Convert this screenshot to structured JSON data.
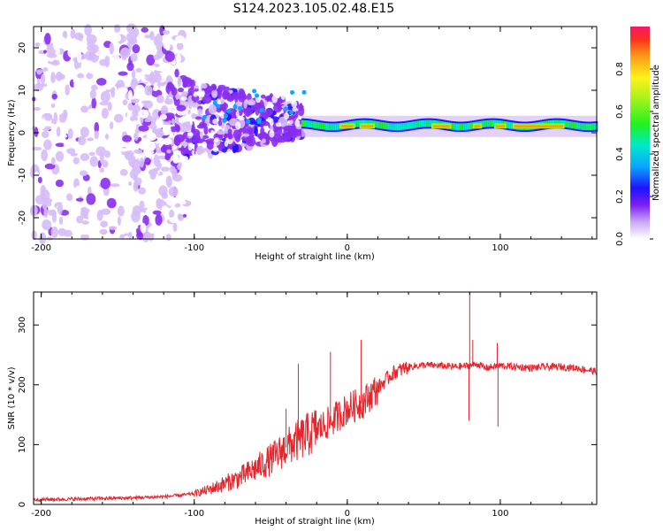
{
  "title": "S124.2023.105.02.48.E15",
  "chart_data": [
    {
      "type": "heatmap",
      "xlabel": "Height of straight line (km)",
      "ylabel": "Frequency (Hz)",
      "xlim": [
        -205,
        163
      ],
      "ylim": [
        -25,
        25
      ],
      "x_ticks": [
        -200,
        -100,
        0,
        100
      ],
      "y_ticks": [
        -20,
        -10,
        0,
        10,
        20
      ],
      "colorbar": {
        "label": "Normalized spectral amplitude",
        "range": [
          0.0,
          1.0
        ],
        "ticks": [
          "0.0",
          "0.2",
          "0.4",
          "0.6",
          "0.8"
        ]
      },
      "description_points": [
        {
          "x_range": [
            -205,
            -105
          ],
          "freq_range": [
            -25,
            25
          ],
          "amplitude": 0.05
        },
        {
          "x_range": [
            -105,
            -30
          ],
          "freq_range": [
            -10,
            12
          ],
          "amplitude": 0.15
        },
        {
          "x_range": [
            -30,
            163
          ],
          "freq_range": [
            0,
            3
          ],
          "amplitude": 0.75
        }
      ]
    },
    {
      "type": "line",
      "xlabel": "Height of straight line (km)",
      "ylabel": "SNR (10 * v/v)",
      "xlim": [
        -205,
        163
      ],
      "ylim": [
        0,
        355
      ],
      "x_ticks": [
        -200,
        -100,
        0,
        100
      ],
      "y_ticks": [
        0,
        100,
        200,
        300
      ],
      "color": "#e8232a",
      "x": [
        -205,
        -180,
        -160,
        -140,
        -120,
        -110,
        -100,
        -90,
        -80,
        -70,
        -60,
        -50,
        -40,
        -30,
        -20,
        -10,
        0,
        10,
        20,
        30,
        40,
        50,
        60,
        70,
        80,
        85,
        90,
        95,
        100,
        110,
        120,
        130,
        140,
        150,
        163
      ],
      "y": [
        8,
        9,
        10,
        11,
        13,
        15,
        18,
        25,
        35,
        45,
        60,
        75,
        95,
        110,
        125,
        140,
        160,
        170,
        195,
        220,
        230,
        233,
        232,
        230,
        232,
        235,
        228,
        230,
        232,
        230,
        228,
        230,
        230,
        228,
        222
      ],
      "spikes": [
        {
          "x": 80,
          "y": 355
        },
        {
          "x": 82,
          "y": 275
        },
        {
          "x": 79.5,
          "y": 140
        },
        {
          "x": 98,
          "y": 270
        },
        {
          "x": 98.5,
          "y": 130
        },
        {
          "x": 9,
          "y": 275
        },
        {
          "x": -11,
          "y": 255
        },
        {
          "x": -32,
          "y": 235
        },
        {
          "x": -40,
          "y": 160
        }
      ]
    }
  ]
}
